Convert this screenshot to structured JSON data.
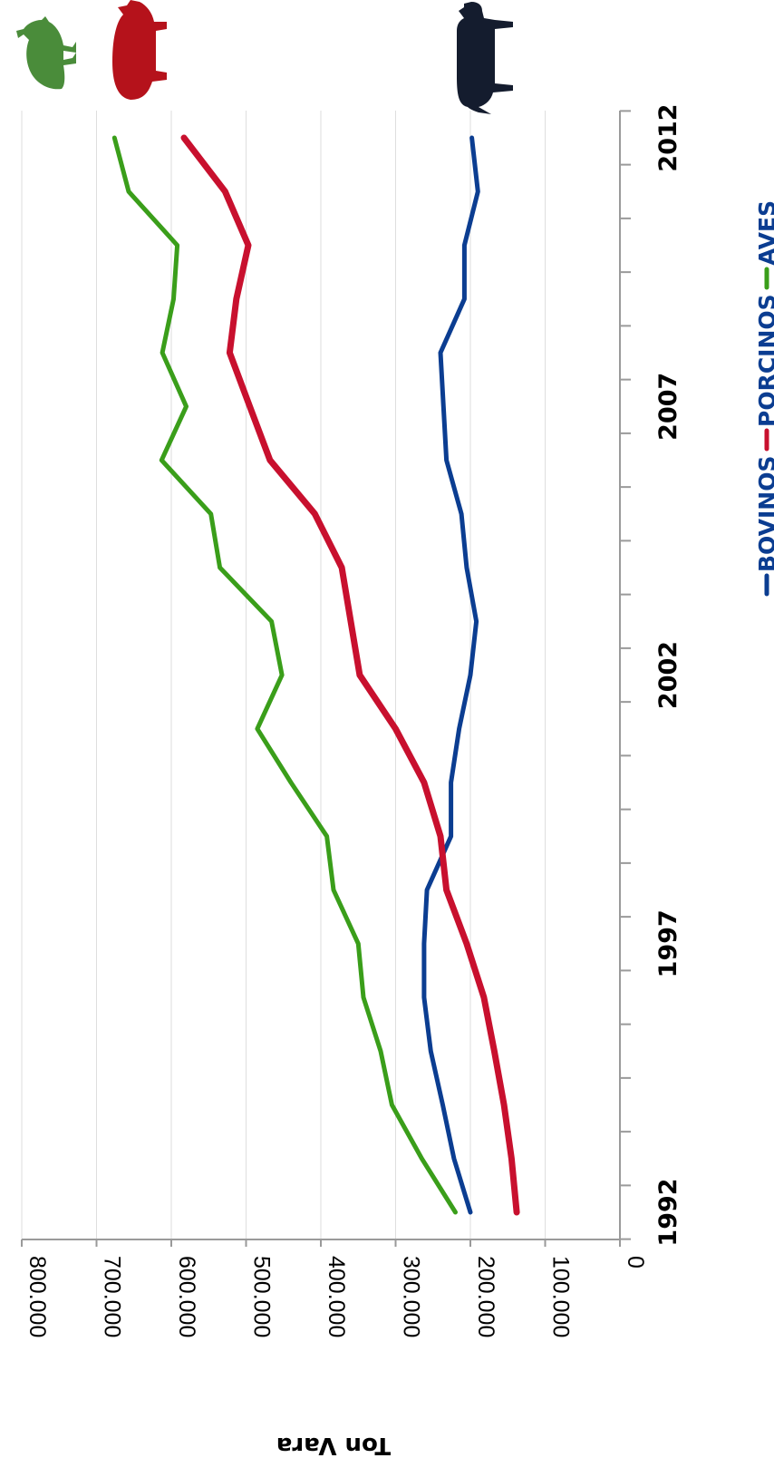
{
  "chart_data": {
    "type": "line",
    "ylabel": "Ton Vara",
    "ylim": [
      0,
      800000
    ],
    "yticks": [
      0,
      100000,
      200000,
      300000,
      400000,
      500000,
      600000,
      700000,
      800000
    ],
    "ytick_labels": [
      "0",
      "100.000",
      "200.000",
      "300.000",
      "400.000",
      "500.000",
      "600.000",
      "700.000",
      "800.000"
    ],
    "x": [
      1992,
      1993,
      1994,
      1995,
      1996,
      1997,
      1998,
      1999,
      2000,
      2001,
      2002,
      2003,
      2004,
      2005,
      2006,
      2007,
      2008,
      2009,
      2010,
      2011,
      2012
    ],
    "xtick_labels": [
      {
        "year": 1992,
        "label": "1992"
      },
      {
        "year": 1997,
        "label": "1997"
      },
      {
        "year": 2002,
        "label": "2002"
      },
      {
        "year": 2007,
        "label": "2007"
      },
      {
        "year": 2012,
        "label": "2012"
      }
    ],
    "series": [
      {
        "name": "BOVINOS",
        "color": "#0b3d91",
        "values": [
          200000,
          222000,
          237000,
          253000,
          262000,
          262000,
          258000,
          226000,
          226000,
          215000,
          200000,
          192000,
          205000,
          212000,
          232000,
          236000,
          240000,
          208000,
          208000,
          190000,
          198000
        ]
      },
      {
        "name": "PORCINOS",
        "color": "#c8102e",
        "values": [
          138000,
          145000,
          155000,
          168000,
          182000,
          205000,
          232000,
          240000,
          262000,
          300000,
          348000,
          360000,
          372000,
          408000,
          468000,
          495000,
          522000,
          513000,
          497000,
          528000,
          583000
        ]
      },
      {
        "name": "AVES",
        "color": "#3a9e1a",
        "values": [
          220000,
          265000,
          305000,
          320000,
          343000,
          350000,
          383000,
          392000,
          440000,
          485000,
          452000,
          466000,
          535000,
          547000,
          613000,
          580000,
          612000,
          597000,
          592000,
          657000,
          676000
        ]
      }
    ],
    "legend": "right",
    "grid": true
  },
  "icons": [
    "chicken-icon",
    "pig-icon",
    "cow-icon"
  ]
}
